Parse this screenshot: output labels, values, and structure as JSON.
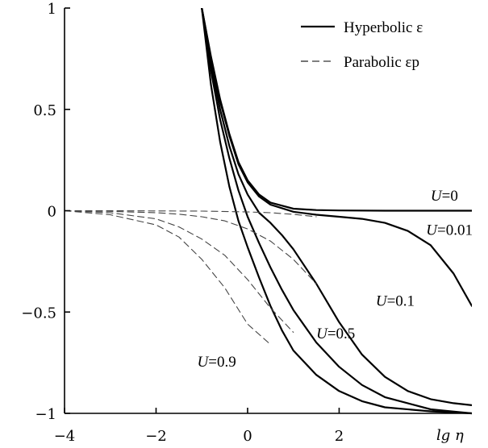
{
  "chart_data": {
    "type": "line",
    "title": "",
    "xlabel": "lg η",
    "ylabel": "",
    "xlim": [
      -4,
      4.9
    ],
    "ylim": [
      -1,
      1
    ],
    "xticks": [
      -4,
      -2,
      0,
      2
    ],
    "xtick_labels": [
      "−4",
      "−2",
      "0",
      "2"
    ],
    "yticks": [
      1,
      0.5,
      0,
      -0.5,
      -1
    ],
    "ytick_labels": [
      "1",
      "0.5",
      "0",
      "−0.5",
      "−1"
    ],
    "legend": {
      "placement": "top-right",
      "entries": [
        {
          "label": "Hyperbolic ε",
          "style": "solid"
        },
        {
          "label": "Parabolic εp",
          "style": "dashed"
        }
      ]
    },
    "series": [
      {
        "name": "U=0",
        "style": "solid",
        "x": [
          -1.0,
          -0.8,
          -0.6,
          -0.4,
          -0.2,
          0.0,
          0.25,
          0.5,
          1.0,
          1.5,
          2.0,
          3.0,
          4.0,
          4.9
        ],
        "y": [
          1.0,
          0.76,
          0.55,
          0.38,
          0.24,
          0.15,
          0.08,
          0.04,
          0.01,
          0.003,
          0.001,
          0.0,
          0.0,
          0.0
        ]
      },
      {
        "name": "U=0.01",
        "style": "solid",
        "x": [
          -1.0,
          -0.8,
          -0.6,
          -0.4,
          -0.2,
          0.0,
          0.25,
          0.5,
          1.0,
          1.5,
          2.0,
          2.5,
          3.0,
          3.5,
          4.0,
          4.5,
          4.9
        ],
        "y": [
          1.0,
          0.75,
          0.54,
          0.37,
          0.23,
          0.14,
          0.07,
          0.03,
          -0.005,
          -0.02,
          -0.03,
          -0.04,
          -0.06,
          -0.1,
          -0.17,
          -0.31,
          -0.47
        ]
      },
      {
        "name": "U=0.1",
        "style": "solid",
        "x": [
          -1.0,
          -0.8,
          -0.6,
          -0.4,
          -0.2,
          0.0,
          0.25,
          0.5,
          0.75,
          1.0,
          1.5,
          2.0,
          2.5,
          3.0,
          3.5,
          4.0,
          4.5,
          4.9
        ],
        "y": [
          1.0,
          0.72,
          0.5,
          0.32,
          0.18,
          0.08,
          -0.01,
          -0.06,
          -0.12,
          -0.19,
          -0.36,
          -0.55,
          -0.71,
          -0.82,
          -0.89,
          -0.93,
          -0.95,
          -0.96
        ]
      },
      {
        "name": "U=0.5",
        "style": "solid",
        "x": [
          -1.0,
          -0.8,
          -0.6,
          -0.4,
          -0.2,
          0.0,
          0.25,
          0.5,
          0.75,
          1.0,
          1.5,
          2.0,
          2.5,
          3.0,
          4.0,
          4.9
        ],
        "y": [
          1.0,
          0.69,
          0.45,
          0.26,
          0.1,
          -0.03,
          -0.16,
          -0.28,
          -0.39,
          -0.49,
          -0.65,
          -0.77,
          -0.86,
          -0.92,
          -0.98,
          -1.0
        ]
      },
      {
        "name": "U=0.9",
        "style": "solid",
        "x": [
          -1.0,
          -0.8,
          -0.6,
          -0.4,
          -0.2,
          0.0,
          0.25,
          0.5,
          0.75,
          1.0,
          1.5,
          2.0,
          2.5,
          3.0,
          4.0,
          4.9
        ],
        "y": [
          1.0,
          0.62,
          0.34,
          0.12,
          -0.05,
          -0.18,
          -0.33,
          -0.47,
          -0.59,
          -0.69,
          -0.81,
          -0.89,
          -0.94,
          -0.97,
          -0.99,
          -1.0
        ]
      },
      {
        "name": "εp U=0.01",
        "style": "dashed",
        "legend": false,
        "x": [
          -4.0,
          -3.0,
          -2.0,
          -1.0,
          0.0,
          0.5,
          1.0,
          1.5
        ],
        "y": [
          0.0,
          0.0,
          -0.001,
          -0.002,
          -0.006,
          -0.01,
          -0.018,
          -0.03
        ]
      },
      {
        "name": "εp U=0.1",
        "style": "dashed",
        "legend": false,
        "x": [
          -4.0,
          -3.0,
          -2.0,
          -1.5,
          -1.0,
          -0.5,
          0.0,
          0.5,
          1.0,
          1.5
        ],
        "y": [
          0.0,
          -0.003,
          -0.01,
          -0.017,
          -0.03,
          -0.05,
          -0.09,
          -0.15,
          -0.24,
          -0.36
        ]
      },
      {
        "name": "εp U=0.5",
        "style": "dashed",
        "legend": false,
        "x": [
          -4.0,
          -3.0,
          -2.0,
          -1.5,
          -1.0,
          -0.5,
          0.0,
          0.5,
          1.0
        ],
        "y": [
          0.0,
          -0.01,
          -0.04,
          -0.08,
          -0.14,
          -0.22,
          -0.34,
          -0.48,
          -0.6
        ]
      },
      {
        "name": "εp U=0.9",
        "style": "dashed",
        "legend": false,
        "x": [
          -4.0,
          -3.0,
          -2.0,
          -1.5,
          -1.0,
          -0.5,
          0.0,
          0.5
        ],
        "y": [
          0.0,
          -0.02,
          -0.07,
          -0.13,
          -0.24,
          -0.38,
          -0.56,
          -0.66
        ]
      }
    ],
    "annotations": [
      {
        "text": "U=0",
        "x": 4.0,
        "y": 0.05
      },
      {
        "text": "U=0.01",
        "x": 3.9,
        "y": -0.12
      },
      {
        "text": "U=0.1",
        "x": 2.8,
        "y": -0.47
      },
      {
        "text": "U=0.5",
        "x": 1.5,
        "y": -0.63
      },
      {
        "text": "U=0.9",
        "x": -1.1,
        "y": -0.77
      }
    ]
  }
}
